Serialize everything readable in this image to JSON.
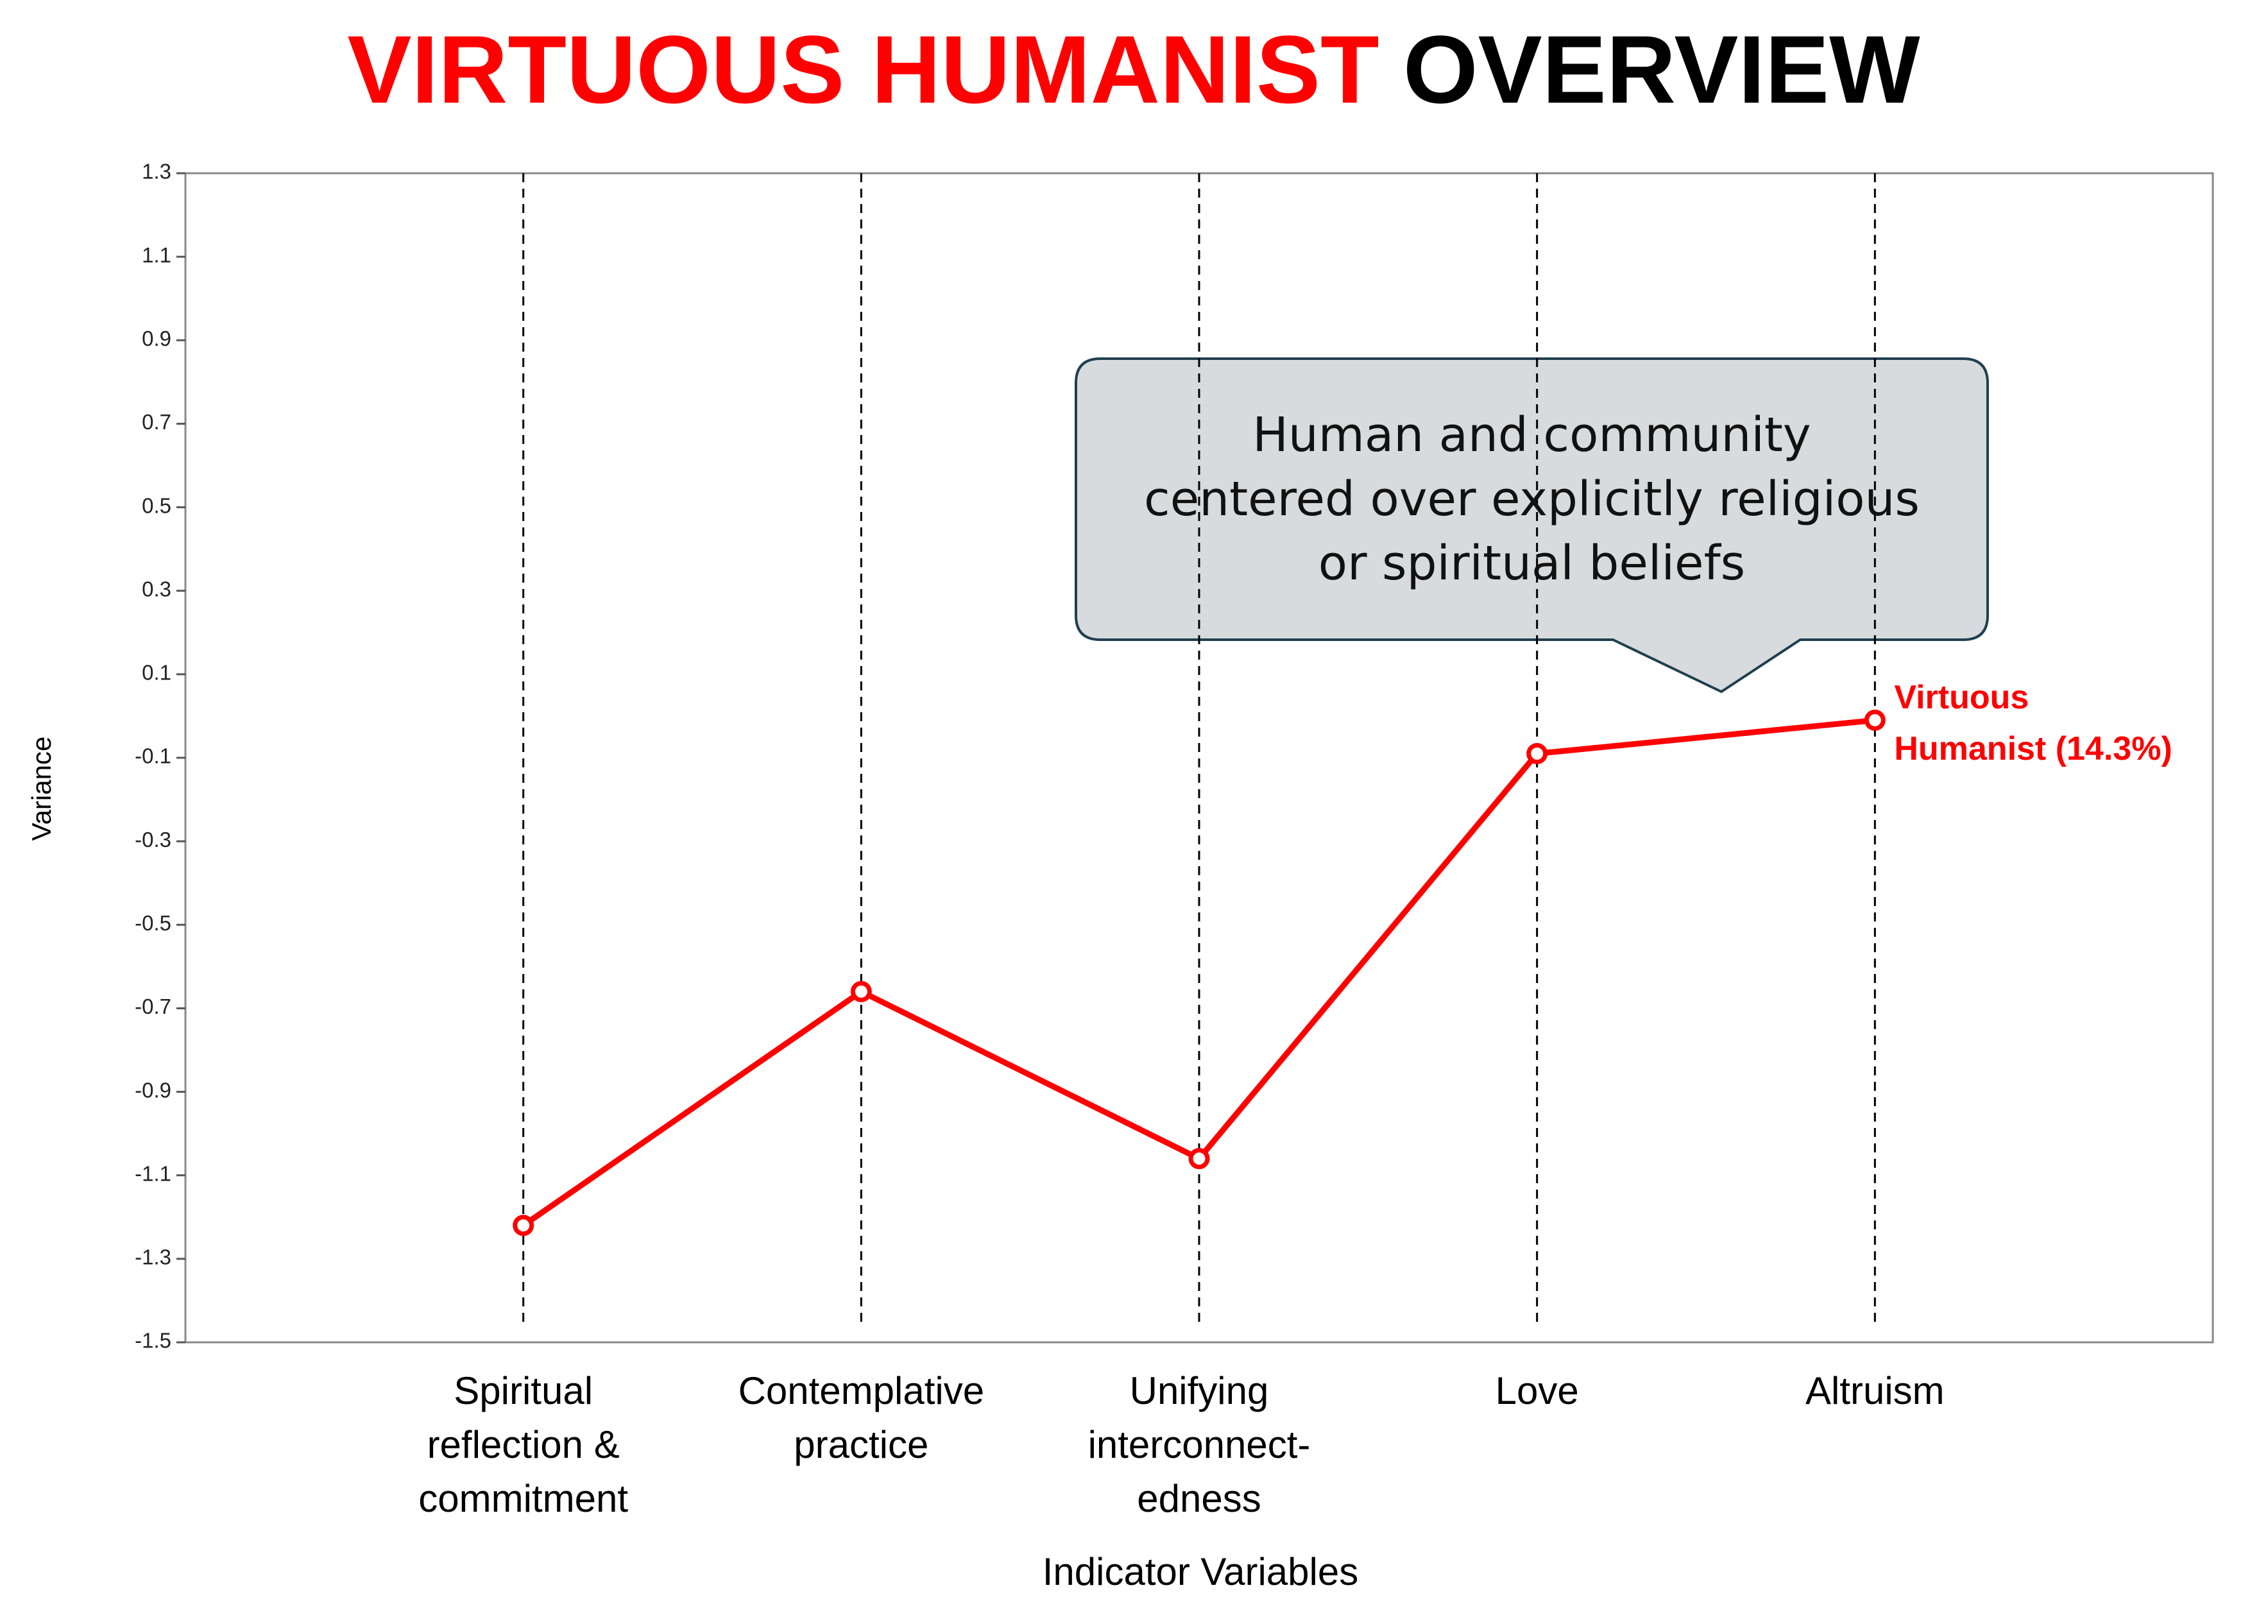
{
  "chart_data": {
    "type": "line",
    "title_parts": [
      {
        "text": "VIRTUOUS HUMANIST",
        "color": "#ff0000"
      },
      {
        "text": "OVERVIEW",
        "color": "#000000"
      }
    ],
    "categories": [
      "Spiritual\nreflection &\ncommitment",
      "Contemplative\npractice",
      "Unifying\ninterconnect-\nedness",
      "Love",
      "Altruism"
    ],
    "series": [
      {
        "name": "Virtuous\nHumanist (14.3%)",
        "color": "#ff0000",
        "values": [
          -1.22,
          -0.66,
          -1.06,
          -0.09,
          -0.01
        ]
      }
    ],
    "ylim": [
      -1.5,
      1.3
    ],
    "yticks": [
      1.3,
      1.1,
      0.9,
      0.7,
      0.5,
      0.3,
      0.1,
      -0.1,
      -0.3,
      -0.5,
      -0.7,
      -0.9,
      -1.1,
      -1.3,
      -1.5
    ],
    "x_label": "Indicator Variables",
    "y_label": "Variance",
    "annotation": "Human and community\ncentered over explicitly religious\nor spiritual beliefs"
  }
}
